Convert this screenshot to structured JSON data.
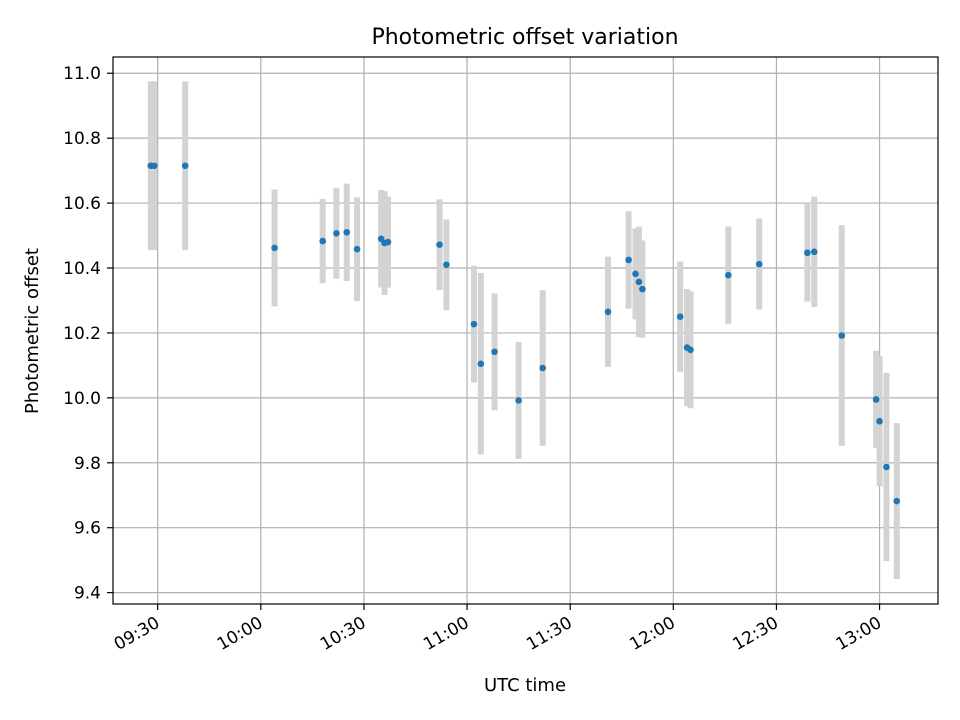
{
  "chart_data": {
    "type": "scatter",
    "title": "Photometric offset variation",
    "xlabel": "UTC time",
    "ylabel": "Photometric offset",
    "x_ticks": [
      "09:30",
      "10:00",
      "10:30",
      "11:00",
      "11:30",
      "12:00",
      "12:30",
      "13:00"
    ],
    "y_ticks": [
      "9.4",
      "9.6",
      "9.8",
      "10.0",
      "10.2",
      "10.4",
      "10.6",
      "10.8",
      "11.0"
    ],
    "xlim": [
      "09:17",
      "13:17"
    ],
    "ylim": [
      9.365,
      11.05
    ],
    "grid": true,
    "colors": {
      "point": "#1f77b4",
      "errorbar": "#d3d3d3",
      "grid": "#b0b0b0"
    },
    "points": [
      {
        "time": "09:28",
        "y": 10.715,
        "err": 0.26
      },
      {
        "time": "09:29",
        "y": 10.715,
        "err": 0.26
      },
      {
        "time": "09:38",
        "y": 10.715,
        "err": 0.26
      },
      {
        "time": "10:04",
        "y": 10.462,
        "err": 0.18
      },
      {
        "time": "10:18",
        "y": 10.483,
        "err": 0.13
      },
      {
        "time": "10:22",
        "y": 10.507,
        "err": 0.14
      },
      {
        "time": "10:25",
        "y": 10.51,
        "err": 0.15
      },
      {
        "time": "10:28",
        "y": 10.458,
        "err": 0.16
      },
      {
        "time": "10:35",
        "y": 10.49,
        "err": 0.15
      },
      {
        "time": "10:36",
        "y": 10.477,
        "err": 0.16
      },
      {
        "time": "10:37",
        "y": 10.48,
        "err": 0.14
      },
      {
        "time": "10:52",
        "y": 10.472,
        "err": 0.14
      },
      {
        "time": "10:54",
        "y": 10.41,
        "err": 0.14
      },
      {
        "time": "11:02",
        "y": 10.227,
        "err": 0.18
      },
      {
        "time": "11:04",
        "y": 10.105,
        "err": 0.28
      },
      {
        "time": "11:08",
        "y": 10.142,
        "err": 0.18
      },
      {
        "time": "11:15",
        "y": 9.992,
        "err": 0.18
      },
      {
        "time": "11:22",
        "y": 10.092,
        "err": 0.24
      },
      {
        "time": "11:41",
        "y": 10.265,
        "err": 0.17
      },
      {
        "time": "11:47",
        "y": 10.425,
        "err": 0.15
      },
      {
        "time": "11:49",
        "y": 10.382,
        "err": 0.14
      },
      {
        "time": "11:50",
        "y": 10.357,
        "err": 0.17
      },
      {
        "time": "11:51",
        "y": 10.335,
        "err": 0.15
      },
      {
        "time": "12:02",
        "y": 10.25,
        "err": 0.17
      },
      {
        "time": "12:04",
        "y": 10.155,
        "err": 0.18
      },
      {
        "time": "12:05",
        "y": 10.148,
        "err": 0.18
      },
      {
        "time": "12:16",
        "y": 10.378,
        "err": 0.15
      },
      {
        "time": "12:25",
        "y": 10.412,
        "err": 0.14
      },
      {
        "time": "12:39",
        "y": 10.447,
        "err": 0.15
      },
      {
        "time": "12:41",
        "y": 10.45,
        "err": 0.17
      },
      {
        "time": "12:49",
        "y": 10.192,
        "err": 0.34
      },
      {
        "time": "12:59",
        "y": 9.995,
        "err": 0.15
      },
      {
        "time": "13:00",
        "y": 9.928,
        "err": 0.2
      },
      {
        "time": "13:02",
        "y": 9.787,
        "err": 0.29
      },
      {
        "time": "13:05",
        "y": 9.682,
        "err": 0.24
      }
    ]
  }
}
